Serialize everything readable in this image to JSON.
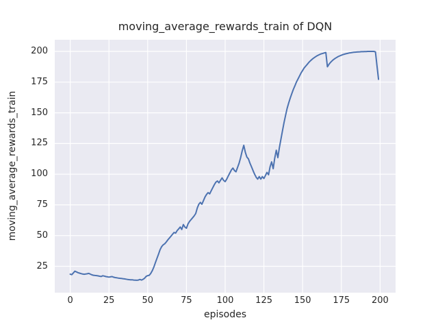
{
  "chart_data": {
    "type": "line",
    "title": "moving_average_rewards_train of DQN",
    "xlabel": "episodes",
    "ylabel": "moving_average_rewards_train",
    "xlim": [
      -10,
      210
    ],
    "ylim": [
      3.5,
      209.5
    ],
    "xticks": [
      0,
      25,
      50,
      75,
      100,
      125,
      150,
      175,
      200
    ],
    "yticks": [
      25,
      50,
      75,
      100,
      125,
      150,
      175,
      200
    ],
    "grid": true,
    "legend": null,
    "x_start": 0,
    "colors": {
      "figure_background": "#ffffff",
      "axes_background": "#EAEAF2",
      "grid": "#ffffff",
      "text": "#262626",
      "line": "#4C72B0"
    },
    "series": [
      {
        "name": "moving_average_rewards_train",
        "color": "#4C72B0",
        "values": [
          18.6,
          18.2,
          19.6,
          21.0,
          20.4,
          19.8,
          19.4,
          19.0,
          18.7,
          18.5,
          18.7,
          18.9,
          19.2,
          18.6,
          18.0,
          17.7,
          17.5,
          17.4,
          17.2,
          16.9,
          16.7,
          17.3,
          17.0,
          16.6,
          16.4,
          16.2,
          16.4,
          16.6,
          16.1,
          15.8,
          15.6,
          15.4,
          15.2,
          15.1,
          14.9,
          14.7,
          14.5,
          14.3,
          14.1,
          14.0,
          14.0,
          13.8,
          13.7,
          13.6,
          13.8,
          14.3,
          13.8,
          14.4,
          15.3,
          16.8,
          17.4,
          17.7,
          19.2,
          21.5,
          24.5,
          28.0,
          31.5,
          35.0,
          38.5,
          41.0,
          42.5,
          43.3,
          44.8,
          46.5,
          48.0,
          49.5,
          51.0,
          52.5,
          52.0,
          54.0,
          55.5,
          57.0,
          55.0,
          59.0,
          57.0,
          56.0,
          59.5,
          61.5,
          63.0,
          64.5,
          66.0,
          68.0,
          72.5,
          75.5,
          77.0,
          75.5,
          78.5,
          81.5,
          83.5,
          85.0,
          84.0,
          86.5,
          89.0,
          91.5,
          93.5,
          94.5,
          93.0,
          95.0,
          97.0,
          95.0,
          94.0,
          96.0,
          98.5,
          101.0,
          103.5,
          105.0,
          103.0,
          102.0,
          105.5,
          109.0,
          113.5,
          119.0,
          123.5,
          118.0,
          114.0,
          112.5,
          109.0,
          106.0,
          103.0,
          100.0,
          97.5,
          96.0,
          98.0,
          96.0,
          98.0,
          96.5,
          99.0,
          101.5,
          99.5,
          106.0,
          110.0,
          104.5,
          113.0,
          119.5,
          113.5,
          121.5,
          128.5,
          135.5,
          142.0,
          148.0,
          153.5,
          158.0,
          162.0,
          165.5,
          169.0,
          172.0,
          175.0,
          177.5,
          180.0,
          182.5,
          184.5,
          186.5,
          188.0,
          189.5,
          191.0,
          192.3,
          193.5,
          194.5,
          195.4,
          196.2,
          196.9,
          197.5,
          198.0,
          198.4,
          198.8,
          199.1,
          187.5,
          189.5,
          191.0,
          192.3,
          193.4,
          194.3,
          195.1,
          195.8,
          196.4,
          196.9,
          197.4,
          197.8,
          198.1,
          198.4,
          198.7,
          198.9,
          199.1,
          199.3,
          199.4,
          199.5,
          199.6,
          199.7,
          199.8,
          199.8,
          199.9,
          199.9,
          200.0,
          200.0,
          200.0,
          200.0,
          200.0,
          199.6,
          188.5,
          177.3
        ]
      }
    ]
  }
}
